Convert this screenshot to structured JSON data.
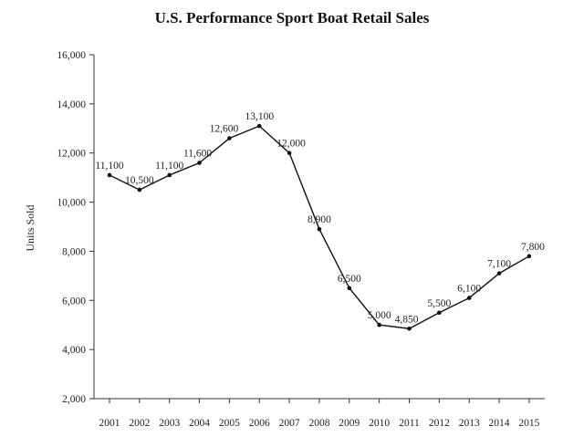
{
  "chart_data": {
    "type": "line",
    "title": "U.S. Performance Sport Boat Retail Sales",
    "xlabel": "",
    "ylabel": "Units Sold",
    "categories": [
      "2001",
      "2002",
      "2003",
      "2004",
      "2005",
      "2006",
      "2007",
      "2008",
      "2009",
      "2010",
      "2011",
      "2012",
      "2013",
      "2014",
      "2015"
    ],
    "values": [
      11100,
      10500,
      11100,
      11600,
      12600,
      13100,
      12000,
      8900,
      6500,
      5000,
      4850,
      5500,
      6100,
      7100,
      7800
    ],
    "data_labels": [
      "11,100",
      "10,500",
      "11,100",
      "11,600",
      "12,600",
      "13,100",
      "12,000",
      "8,900",
      "6,500",
      "5,000",
      "4,850",
      "5,500",
      "6,100",
      "7,100",
      "7,800"
    ],
    "ylim": [
      2000,
      16000
    ],
    "yticks": [
      2000,
      4000,
      6000,
      8000,
      10000,
      12000,
      14000,
      16000
    ],
    "ytick_labels": [
      "2,000",
      "4,000",
      "6,000",
      "8,000",
      "10,000",
      "12,000",
      "14,000",
      "16,000"
    ],
    "grid": false,
    "legend": "none",
    "colors": {
      "line": "#111111",
      "marker": "#111111",
      "axis": "#333333"
    }
  }
}
